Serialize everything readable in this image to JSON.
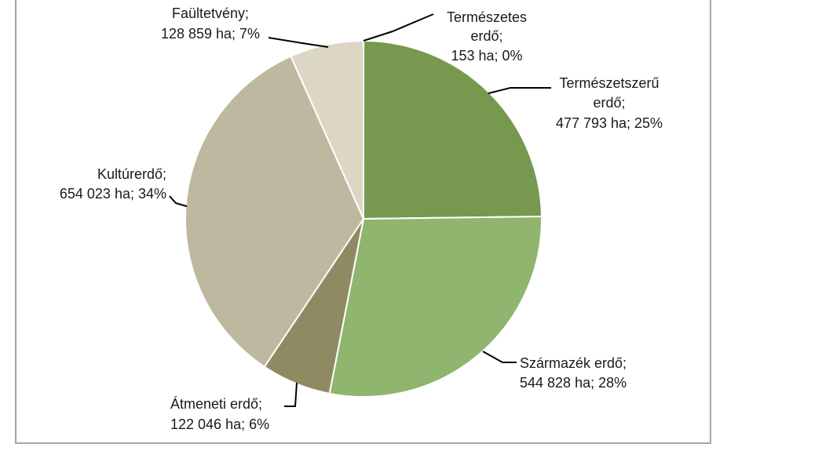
{
  "chart_data": {
    "type": "pie",
    "title": "",
    "slices": [
      {
        "label": "Természetes erdő",
        "value": 153,
        "percent": "0%",
        "color": "#2f5e2b",
        "label_lines": [
          "Természetes",
          "erdő;",
          "153 ha; 0%"
        ]
      },
      {
        "label": "Természetszerű erdő",
        "value": 477793,
        "percent": "25%",
        "color": "#76994f",
        "label_lines": [
          "Természetszerű",
          "erdő;",
          "477 793 ha; 25%"
        ]
      },
      {
        "label": "Származék erdő",
        "value": 544828,
        "percent": "28%",
        "color": "#8fb56e",
        "label_lines": [
          "Származék erdő;",
          "544 828 ha; 28%"
        ]
      },
      {
        "label": "Átmeneti erdő",
        "value": 122046,
        "percent": "6%",
        "color": "#908a63",
        "label_lines": [
          "Átmeneti erdő;",
          "122 046 ha; 6%"
        ]
      },
      {
        "label": "Kultúrerdő",
        "value": 654023,
        "percent": "34%",
        "color": "#bdb89f",
        "label_lines": [
          "Kultúrerdő;",
          "654 023 ha; 34%"
        ]
      },
      {
        "label": "Faültetvény",
        "value": 128859,
        "percent": "7%",
        "color": "#dcd7c5",
        "label_lines": [
          "Faültetvény;",
          "128 859 ha; 7%"
        ]
      }
    ]
  }
}
